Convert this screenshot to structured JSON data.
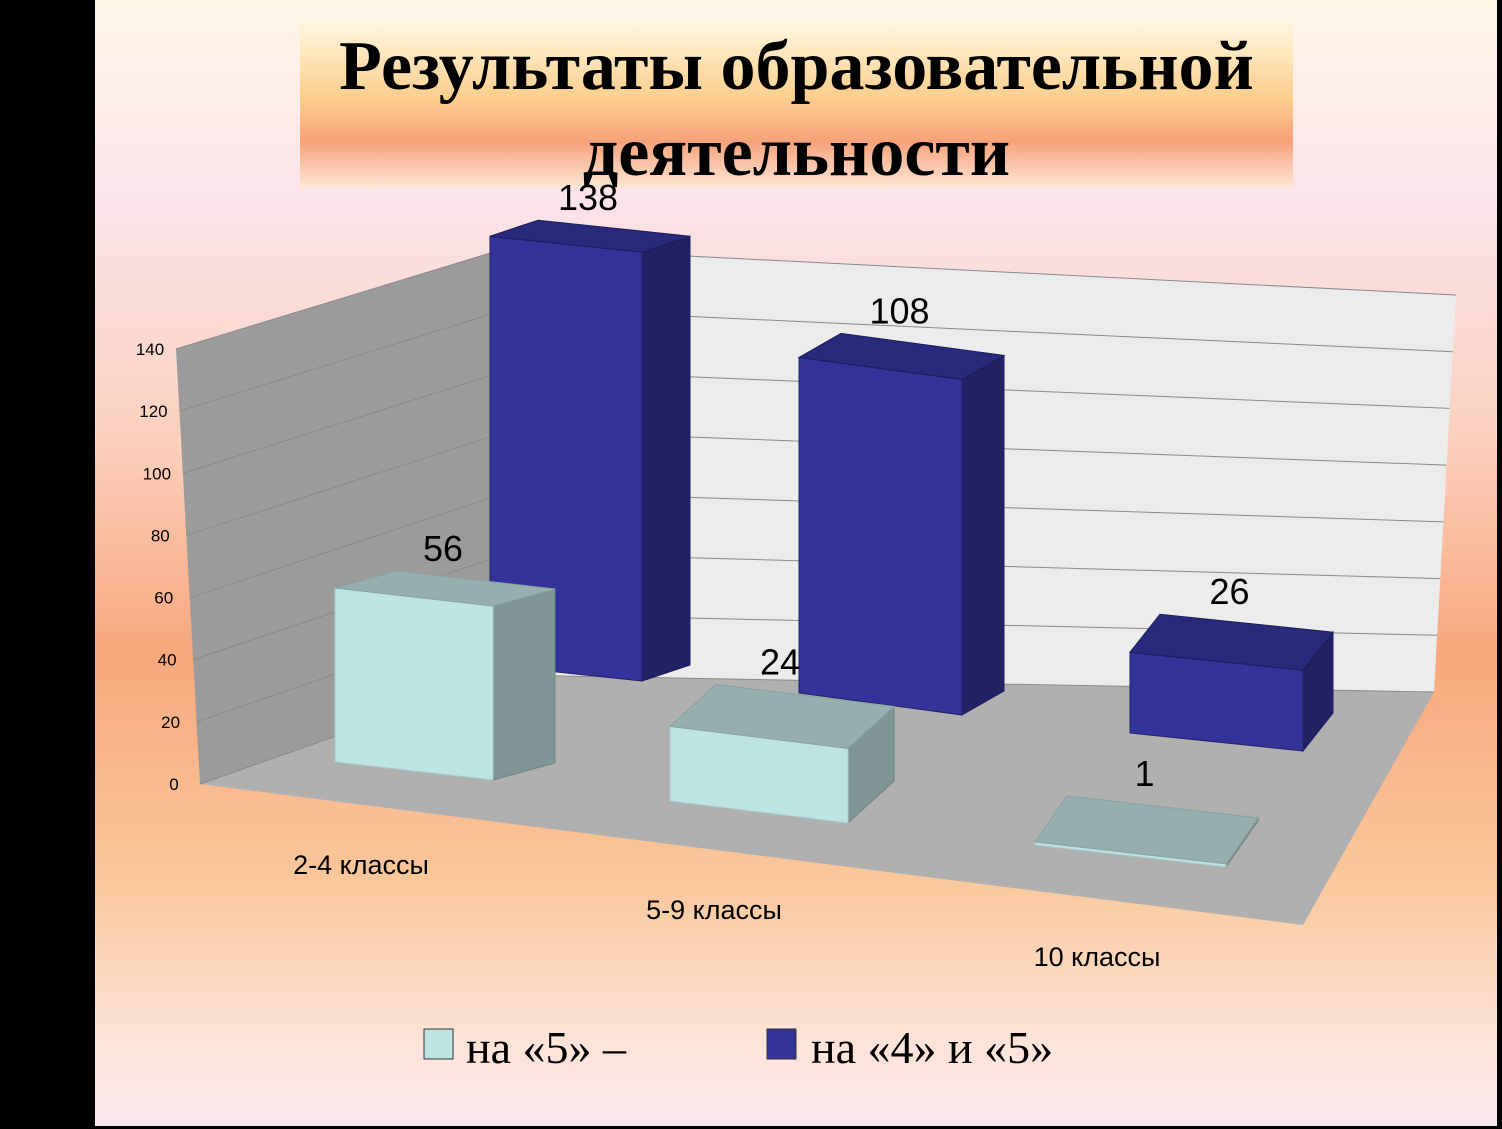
{
  "chart_data": {
    "type": "bar",
    "title": "Результаты образовательной деятельности",
    "title_lines": [
      "Результаты образовательной",
      "деятельности"
    ],
    "categories": [
      "2-4 классы",
      "5-9 классы",
      "10 классы"
    ],
    "series": [
      {
        "name": "на «5»  –",
        "values": [
          56,
          24,
          1
        ],
        "color": "#bde3e3"
      },
      {
        "name": "на «4» и «5»",
        "values": [
          138,
          108,
          26
        ],
        "color": "#333399"
      }
    ],
    "ylim": [
      0,
      140
    ],
    "yticks": [
      "0",
      "20",
      "40",
      "60",
      "80",
      "100",
      "120",
      "140"
    ],
    "grid": true,
    "legend": "bottom",
    "xlabel": "",
    "ylabel": ""
  }
}
